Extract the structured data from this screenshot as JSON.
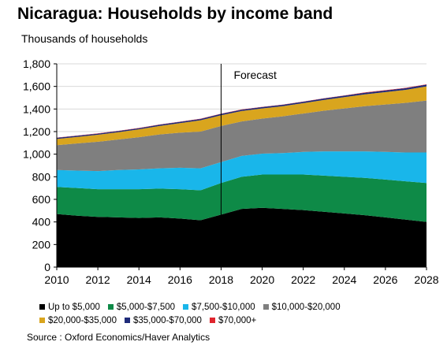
{
  "title": "Nicaragua: Households by income band",
  "source": "Source : Oxford Economics/Haver Analytics",
  "chart_data": {
    "type": "area",
    "stacked": true,
    "title": "Nicaragua: Households by income band",
    "ylabel": "Thousands of households",
    "xlabel": "",
    "xlim": [
      2010,
      2028
    ],
    "ylim": [
      0,
      1800
    ],
    "x_ticks": [
      2010,
      2012,
      2014,
      2016,
      2018,
      2020,
      2022,
      2024,
      2026,
      2028
    ],
    "y_ticks": [
      0,
      200,
      400,
      600,
      800,
      1000,
      1200,
      1400,
      1600,
      1800
    ],
    "y_tick_labels": [
      "0",
      "200",
      "400",
      "600",
      "800",
      "1,000",
      "1,200",
      "1,400",
      "1,600",
      "1,800"
    ],
    "grid": "horizontal",
    "legend_position": "bottom",
    "annotation": {
      "x": 2018,
      "label": "Forecast"
    },
    "x": [
      2010,
      2011,
      2012,
      2013,
      2014,
      2015,
      2016,
      2017,
      2018,
      2019,
      2020,
      2021,
      2022,
      2023,
      2024,
      2025,
      2026,
      2027,
      2028
    ],
    "series": [
      {
        "name": "Up to $5,000",
        "color": "#000000",
        "values": [
          470,
          455,
          445,
          440,
          435,
          440,
          430,
          415,
          465,
          515,
          525,
          515,
          505,
          490,
          475,
          460,
          440,
          420,
          400
        ]
      },
      {
        "name": "$5,000-$7,500",
        "color": "#0e8a47",
        "values": [
          240,
          245,
          245,
          250,
          255,
          255,
          260,
          265,
          280,
          285,
          295,
          305,
          315,
          320,
          325,
          330,
          335,
          340,
          345
        ]
      },
      {
        "name": "$7,500-$10,000",
        "color": "#19b6ea",
        "values": [
          150,
          155,
          160,
          170,
          175,
          180,
          190,
          195,
          185,
          185,
          185,
          190,
          200,
          215,
          225,
          235,
          245,
          255,
          270
        ]
      },
      {
        "name": "$10,000-$20,000",
        "color": "#7f7f7f",
        "values": [
          220,
          240,
          260,
          270,
          285,
          300,
          310,
          325,
          320,
          305,
          310,
          325,
          340,
          360,
          380,
          400,
          420,
          440,
          460
        ]
      },
      {
        "name": "$20,000-$35,000",
        "color": "#d9a51e",
        "values": [
          55,
          58,
          62,
          65,
          70,
          75,
          85,
          100,
          95,
          92,
          90,
          90,
          92,
          95,
          100,
          105,
          110,
          115,
          125
        ]
      },
      {
        "name": "$35,000-$70,000",
        "color": "#1f2b7a",
        "values": [
          10,
          10,
          10,
          10,
          10,
          11,
          11,
          12,
          12,
          12,
          12,
          12,
          12,
          13,
          13,
          14,
          14,
          15,
          16
        ]
      },
      {
        "name": "$70,000+",
        "color": "#e0252e",
        "values": [
          2,
          2,
          2,
          2,
          2,
          2,
          2,
          2,
          2,
          2,
          2,
          2,
          2,
          2,
          2,
          3,
          3,
          3,
          3
        ]
      }
    ]
  }
}
